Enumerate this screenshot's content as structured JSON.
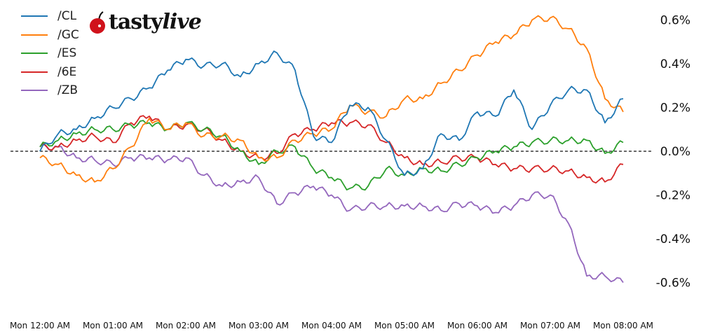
{
  "chart_data": {
    "type": "line",
    "title": "",
    "xlabel": "",
    "ylabel": "",
    "x_tick_labels": [
      "Mon 12:00 AM",
      "Mon 01:00 AM",
      "Mon 02:00 AM",
      "Mon 03:00 AM",
      "Mon 04:00 AM",
      "Mon 05:00 AM",
      "Mon 06:00 AM",
      "Mon 07:00 AM",
      "Mon 08:00 AM"
    ],
    "y_tick_labels": [
      "0.6%",
      "0.4%",
      "0.2%",
      "0.0%",
      "-0.2%",
      "-0.4%",
      "-0.6%"
    ],
    "y_ticks": [
      0.6,
      0.4,
      0.2,
      0.0,
      -0.2,
      -0.4,
      -0.6
    ],
    "ylim": [
      -0.75,
      0.69
    ],
    "y_axis_side": "right",
    "grid": false,
    "zero_line": "dashed",
    "legend_placement": "top-left",
    "x": [
      "00:00",
      "00:15",
      "00:30",
      "00:45",
      "01:00",
      "01:15",
      "01:30",
      "01:45",
      "02:00",
      "02:15",
      "02:30",
      "02:45",
      "03:00",
      "03:15",
      "03:30",
      "03:45",
      "04:00",
      "04:15",
      "04:30",
      "04:45",
      "05:00",
      "05:15",
      "05:30",
      "05:45",
      "06:00",
      "06:15",
      "06:30",
      "06:45",
      "07:00",
      "07:15",
      "07:30",
      "07:45",
      "08:00"
    ],
    "series": [
      {
        "name": "/CL",
        "color": "#1f77b4",
        "values": [
          0,
          0.08,
          0.1,
          0.15,
          0.2,
          0.24,
          0.29,
          0.37,
          0.42,
          0.39,
          0.4,
          0.34,
          0.4,
          0.45,
          0.37,
          0.07,
          0.04,
          0.21,
          0.2,
          0.05,
          -0.11,
          -0.08,
          0.08,
          0.05,
          0.18,
          0.16,
          0.28,
          0.1,
          0.21,
          0.28,
          0.28,
          0.13,
          0.24
        ]
      },
      {
        "name": "/GC",
        "color": "#ff7f0e",
        "values": [
          -0.03,
          -0.06,
          -0.11,
          -0.14,
          -0.08,
          0.02,
          0.15,
          0.1,
          0.13,
          0.07,
          0.07,
          0.05,
          -0.03,
          -0.03,
          0.05,
          0.08,
          0.1,
          0.21,
          0.18,
          0.16,
          0.24,
          0.24,
          0.31,
          0.37,
          0.44,
          0.5,
          0.53,
          0.6,
          0.61,
          0.56,
          0.47,
          0.24,
          0.18
        ]
      },
      {
        "name": "/ES",
        "color": "#2ca02c",
        "values": [
          0.02,
          0.05,
          0.08,
          0.1,
          0.1,
          0.12,
          0.13,
          0.1,
          0.13,
          0.1,
          0.07,
          0,
          -0.06,
          0,
          0.02,
          -0.08,
          -0.12,
          -0.17,
          -0.16,
          -0.08,
          -0.11,
          -0.08,
          -0.09,
          -0.06,
          -0.03,
          0,
          0.02,
          0.04,
          0.05,
          0.05,
          0.05,
          -0.01,
          0.04
        ]
      },
      {
        "name": "/6E",
        "color": "#d62728",
        "values": [
          0.02,
          0.02,
          0.05,
          0.07,
          0.04,
          0.13,
          0.16,
          0.1,
          0.12,
          0.1,
          0.05,
          0,
          -0.03,
          -0.01,
          0.08,
          0.1,
          0.13,
          0.13,
          0.12,
          0.04,
          -0.03,
          -0.06,
          -0.05,
          -0.03,
          -0.03,
          -0.06,
          -0.08,
          -0.08,
          -0.08,
          -0.09,
          -0.12,
          -0.14,
          -0.06
        ]
      },
      {
        "name": "/ZB",
        "color": "#9467bd",
        "values": [
          0.02,
          0.02,
          -0.03,
          -0.04,
          -0.06,
          -0.03,
          -0.03,
          -0.04,
          -0.03,
          -0.11,
          -0.16,
          -0.14,
          -0.12,
          -0.24,
          -0.19,
          -0.16,
          -0.2,
          -0.27,
          -0.25,
          -0.25,
          -0.25,
          -0.25,
          -0.27,
          -0.24,
          -0.25,
          -0.28,
          -0.25,
          -0.2,
          -0.2,
          -0.33,
          -0.57,
          -0.57,
          -0.6
        ]
      }
    ]
  },
  "logo": {
    "text_main": "tasty",
    "text_italic": "live",
    "cherry_color": "#d0121b"
  }
}
